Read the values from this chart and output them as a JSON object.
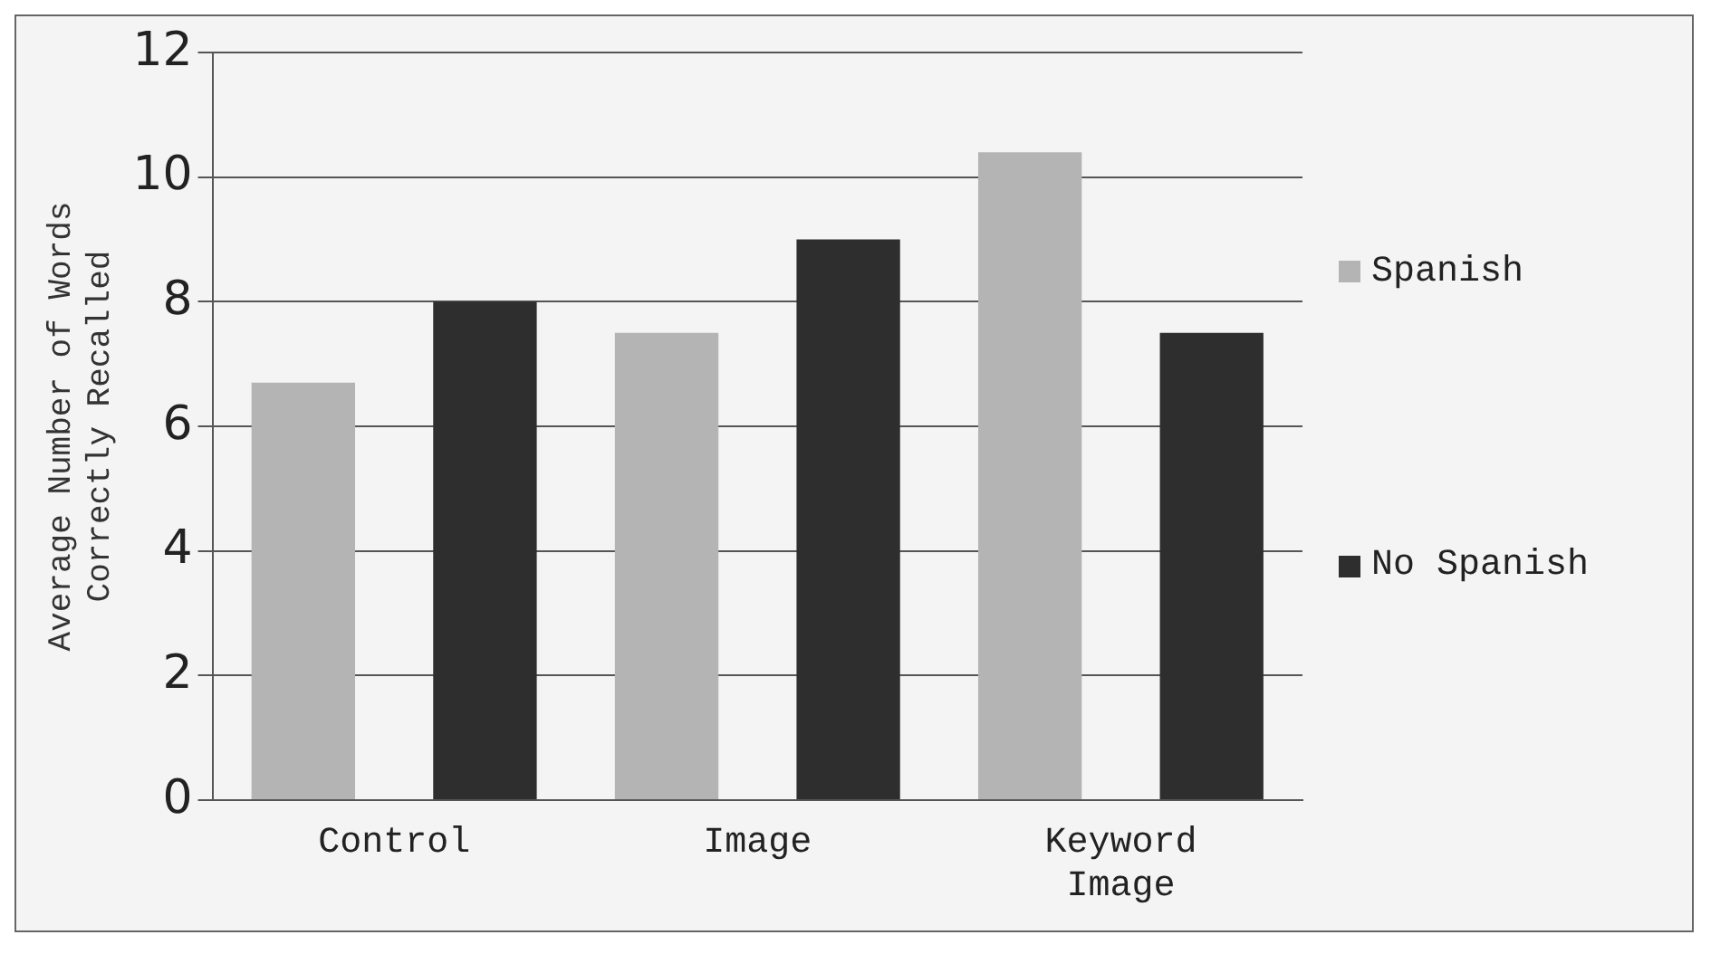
{
  "chart_data": {
    "type": "bar",
    "ylabel": "Average Number of Words Correctly Recalled",
    "categories": [
      "Control",
      "Image",
      "Keyword Image"
    ],
    "series": [
      {
        "name": "Spanish",
        "color": "#b4b4b4",
        "values": [
          6.7,
          7.5,
          10.4
        ]
      },
      {
        "name": "No Spanish",
        "color": "#2e2e2e",
        "values": [
          8.0,
          9.0,
          7.5
        ]
      }
    ],
    "ylim": [
      0,
      12
    ],
    "yticks": [
      0,
      2,
      4,
      6,
      8,
      10,
      12
    ],
    "grid": "y",
    "legend": "right"
  }
}
